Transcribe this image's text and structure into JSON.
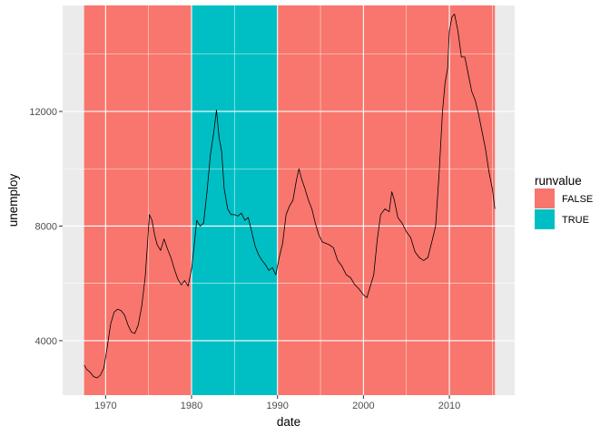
{
  "chart_data": {
    "type": "line",
    "xlabel": "date",
    "ylabel": "unemploy",
    "xlim": [
      1965.0,
      2017.6
    ],
    "ylim": [
      2100,
      15700
    ],
    "x_ticks": [
      1970,
      1980,
      1990,
      2000,
      2010
    ],
    "x_tick_labels": [
      "1970",
      "1980",
      "1990",
      "2000",
      "2010"
    ],
    "x_minor_ticks": [
      1975,
      1985,
      1995,
      2005,
      2015
    ],
    "y_ticks": [
      4000,
      8000,
      12000
    ],
    "y_tick_labels": [
      "4000",
      "8000",
      "12000"
    ],
    "y_minor_ticks": [
      6000,
      10000,
      14000
    ],
    "grid": true,
    "panel_background": "#EBEBEB",
    "line_color": "#000000",
    "legend": {
      "title": "runvalue",
      "position": "right",
      "entries": [
        {
          "label": "FALSE",
          "color": "#F8766D"
        },
        {
          "label": "TRUE",
          "color": "#00BFC4"
        }
      ]
    },
    "runs": [
      {
        "start": 1967.5,
        "end": 1980.0,
        "runvalue": "FALSE"
      },
      {
        "start": 1980.0,
        "end": 1990.0,
        "runvalue": "TRUE"
      },
      {
        "start": 1990.0,
        "end": 2015.3,
        "runvalue": "FALSE"
      }
    ],
    "series": [
      {
        "x": [
          1967.5,
          1967.8,
          1968.2,
          1968.6,
          1969.0,
          1969.4,
          1969.8,
          1970.2,
          1970.6,
          1971.0,
          1971.4,
          1971.8,
          1972.2,
          1972.6,
          1973.0,
          1973.4,
          1973.8,
          1974.2,
          1974.6,
          1974.9,
          1975.1,
          1975.4,
          1975.7,
          1976.0,
          1976.4,
          1976.8,
          1977.2,
          1977.6,
          1978.0,
          1978.4,
          1978.8,
          1979.2,
          1979.6,
          1980.0,
          1980.3,
          1980.6,
          1981.0,
          1981.4,
          1981.8,
          1982.2,
          1982.6,
          1982.9,
          1983.2,
          1983.5,
          1983.8,
          1984.2,
          1984.6,
          1985.0,
          1985.4,
          1985.8,
          1986.2,
          1986.6,
          1987.0,
          1987.4,
          1987.8,
          1988.2,
          1988.6,
          1989.0,
          1989.4,
          1989.8,
          1990.2,
          1990.6,
          1991.0,
          1991.4,
          1991.8,
          1992.2,
          1992.5,
          1992.8,
          1993.2,
          1993.6,
          1994.0,
          1994.4,
          1994.8,
          1995.2,
          1995.6,
          1996.0,
          1996.5,
          1997.0,
          1997.5,
          1998.0,
          1998.5,
          1999.0,
          1999.5,
          2000.0,
          2000.4,
          2000.8,
          2001.2,
          2001.6,
          2002.0,
          2002.5,
          2003.0,
          2003.3,
          2003.6,
          2004.0,
          2004.5,
          2005.0,
          2005.5,
          2006.0,
          2006.5,
          2007.0,
          2007.5,
          2008.0,
          2008.4,
          2008.8,
          2009.2,
          2009.5,
          2009.8,
          2010.0,
          2010.3,
          2010.6,
          2011.0,
          2011.4,
          2011.8,
          2012.2,
          2012.6,
          2013.0,
          2013.4,
          2013.8,
          2014.2,
          2014.6,
          2015.0,
          2015.3
        ],
        "values": [
          3150,
          3000,
          2900,
          2750,
          2700,
          2800,
          3050,
          3800,
          4600,
          5000,
          5100,
          5050,
          4900,
          4550,
          4300,
          4250,
          4550,
          5200,
          6200,
          7500,
          8400,
          8200,
          7700,
          7350,
          7150,
          7550,
          7200,
          6900,
          6500,
          6150,
          5950,
          6100,
          5900,
          6500,
          7300,
          8200,
          8000,
          8100,
          9200,
          10500,
          11300,
          12050,
          11100,
          10600,
          9300,
          8600,
          8400,
          8400,
          8350,
          8450,
          8200,
          8300,
          7800,
          7300,
          7000,
          6800,
          6650,
          6450,
          6550,
          6300,
          6900,
          7400,
          8400,
          8700,
          8900,
          9600,
          10000,
          9650,
          9300,
          8900,
          8600,
          8100,
          7700,
          7450,
          7400,
          7350,
          7250,
          6800,
          6600,
          6300,
          6200,
          5950,
          5800,
          5600,
          5500,
          5900,
          6300,
          7500,
          8400,
          8600,
          8500,
          9200,
          8900,
          8300,
          8100,
          7800,
          7600,
          7100,
          6900,
          6800,
          6900,
          7500,
          8000,
          9800,
          12000,
          13000,
          13500,
          14800,
          15300,
          15400,
          14800,
          13900,
          13900,
          13300,
          12700,
          12400,
          11900,
          11300,
          10700,
          9900,
          9300,
          8600
        ]
      }
    ]
  }
}
